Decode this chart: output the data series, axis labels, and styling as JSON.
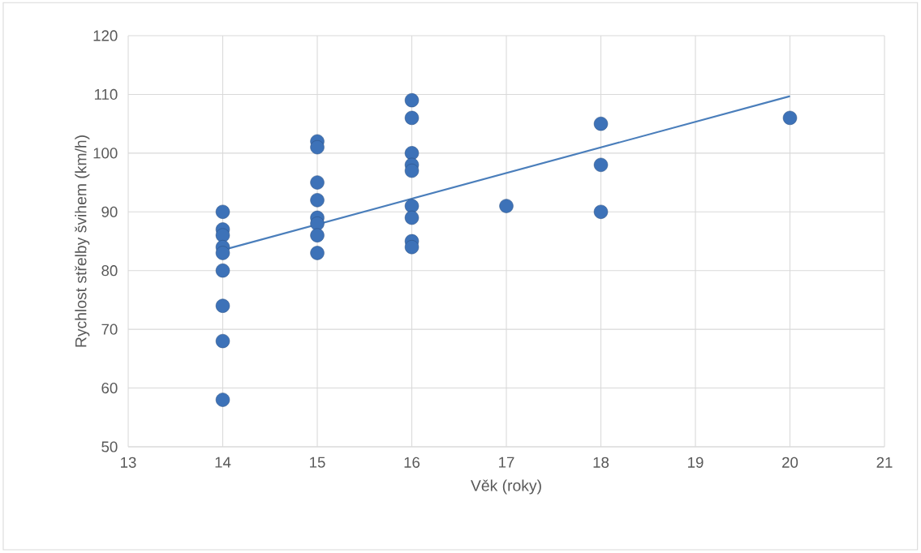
{
  "chart_data": {
    "type": "scatter",
    "xlabel": "Věk (roky)",
    "ylabel": "Rychlost střelby švihem (km/h)",
    "xlim": [
      13,
      21
    ],
    "xticks": [
      13,
      14,
      15,
      16,
      17,
      18,
      19,
      20,
      21
    ],
    "ylim": [
      50,
      120
    ],
    "yticks": [
      50,
      60,
      70,
      80,
      90,
      100,
      110,
      120
    ],
    "grid": true,
    "marker": "circle",
    "series": [
      {
        "color": "#3d72b8",
        "x": [
          14,
          14,
          14,
          14,
          14,
          14,
          14,
          14,
          14,
          15,
          15,
          15,
          15,
          15,
          15,
          15,
          15,
          16,
          16,
          16,
          16,
          16,
          16,
          16,
          16,
          16,
          17,
          18,
          18,
          18,
          20
        ],
        "values": [
          90,
          87,
          86,
          84,
          83,
          80,
          74,
          68,
          58,
          102,
          101,
          95,
          92,
          89,
          88,
          86,
          83,
          109,
          106,
          100,
          98,
          97,
          91,
          89,
          85,
          84,
          91,
          105,
          98,
          90,
          106
        ]
      },
      {
        "type": "line",
        "color": "#4a7ebb",
        "x": [
          14,
          20
        ],
        "values": [
          83.5,
          109.7
        ],
        "marker": "none",
        "line_style": "solid"
      }
    ]
  }
}
